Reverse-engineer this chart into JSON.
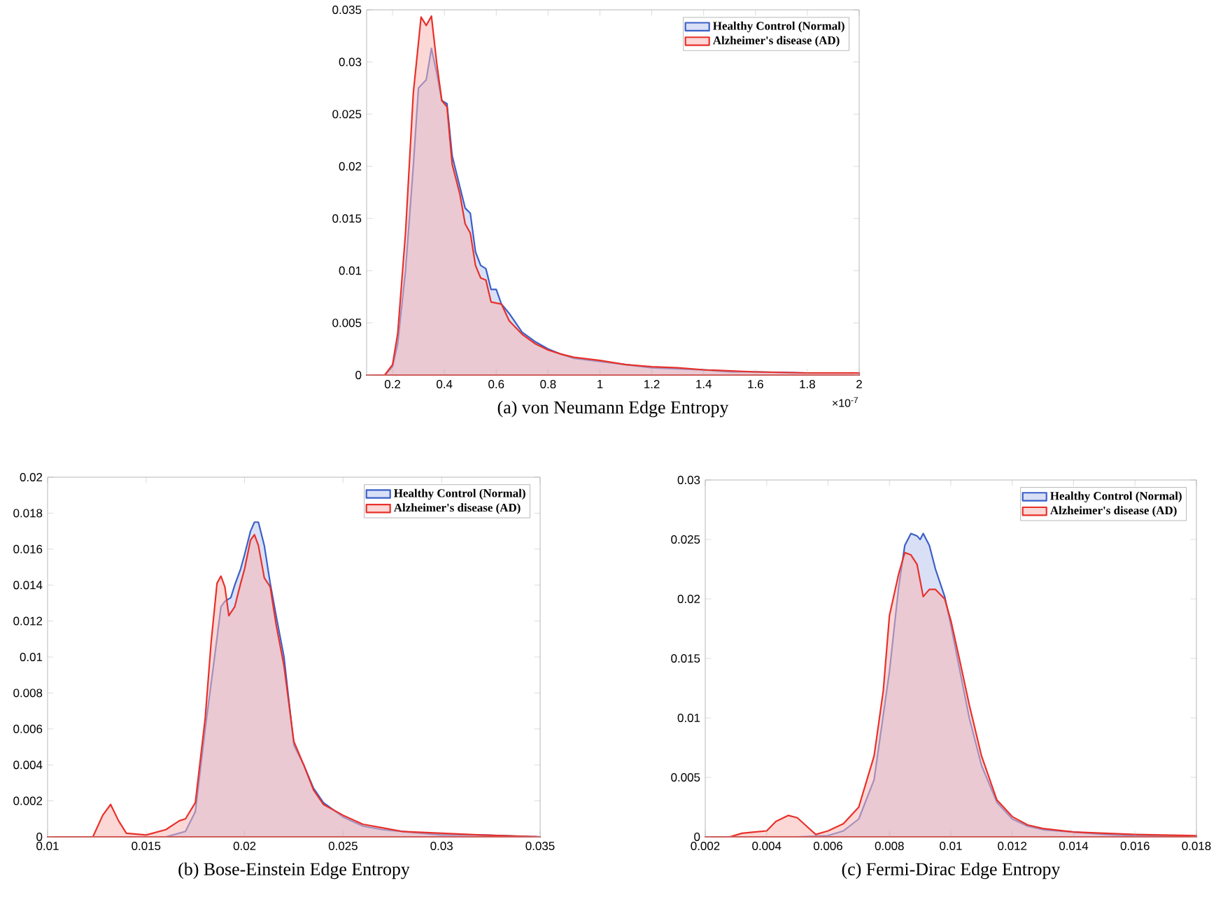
{
  "chart_data": [
    {
      "type": "area",
      "xlabel": "(a) von Neumann Edge Entropy",
      "annotations": [
        "×10$^{-7}$"
      ],
      "legend": "top right",
      "grid": false,
      "xlim": [
        0.1,
        2
      ],
      "xticks": [
        0.2,
        0.4,
        0.6,
        0.8,
        1,
        1.2,
        1.4,
        1.6,
        1.8,
        2
      ],
      "ylim": [
        0,
        0.035
      ],
      "yticks": [
        0,
        0.005,
        0.01,
        0.015,
        0.02,
        0.025,
        0.03,
        0.035
      ],
      "series": [
        {
          "name": "Healthy Control (Normal)",
          "color": "#3a5fc8",
          "x": [
            0.1,
            0.17,
            0.2,
            0.22,
            0.25,
            0.28,
            0.3,
            0.33,
            0.35,
            0.37,
            0.39,
            0.41,
            0.43,
            0.46,
            0.48,
            0.5,
            0.52,
            0.54,
            0.56,
            0.58,
            0.6,
            0.62,
            0.65,
            0.7,
            0.75,
            0.8,
            0.85,
            0.9,
            1.0,
            1.1,
            1.2,
            1.3,
            1.4,
            1.5,
            1.6,
            1.8,
            2.0
          ],
          "values": [
            0,
            0,
            0.0008,
            0.003,
            0.01,
            0.02,
            0.0275,
            0.0283,
            0.0313,
            0.029,
            0.0263,
            0.026,
            0.021,
            0.018,
            0.016,
            0.0155,
            0.0118,
            0.0105,
            0.0102,
            0.0082,
            0.0082,
            0.0068,
            0.0059,
            0.0041,
            0.0032,
            0.0025,
            0.002,
            0.0016,
            0.0013,
            0.001,
            0.0007,
            0.0006,
            0.0005,
            0.0003,
            0.0003,
            0.0002,
            0.0002
          ]
        },
        {
          "name": "Alzheimer's disease (AD)",
          "color": "#e8302a",
          "x": [
            0.1,
            0.17,
            0.2,
            0.22,
            0.25,
            0.28,
            0.31,
            0.33,
            0.35,
            0.37,
            0.39,
            0.41,
            0.43,
            0.46,
            0.48,
            0.5,
            0.52,
            0.54,
            0.56,
            0.58,
            0.6,
            0.62,
            0.65,
            0.7,
            0.75,
            0.8,
            0.85,
            0.9,
            1.0,
            1.1,
            1.2,
            1.3,
            1.4,
            1.5,
            1.6,
            1.8,
            2.0
          ],
          "values": [
            0,
            0,
            0.001,
            0.004,
            0.0136,
            0.027,
            0.0343,
            0.0335,
            0.0344,
            0.03,
            0.0263,
            0.0257,
            0.0202,
            0.0173,
            0.0145,
            0.0136,
            0.0105,
            0.0093,
            0.0091,
            0.007,
            0.0069,
            0.0068,
            0.0052,
            0.0039,
            0.003,
            0.0024,
            0.002,
            0.0017,
            0.0014,
            0.001,
            0.0008,
            0.0007,
            0.0005,
            0.0004,
            0.0003,
            0.0002,
            0.0002
          ]
        }
      ]
    },
    {
      "type": "area",
      "xlabel": "(b) Bose-Einstein Edge Entropy",
      "legend": "top right",
      "grid": false,
      "xlim": [
        0.01,
        0.035
      ],
      "xticks": [
        0.01,
        0.015,
        0.02,
        0.025,
        0.03,
        0.035
      ],
      "ylim": [
        0,
        0.02
      ],
      "yticks": [
        0,
        0.002,
        0.004,
        0.006,
        0.008,
        0.01,
        0.012,
        0.014,
        0.016,
        0.018,
        0.02
      ],
      "series": [
        {
          "name": "Healthy Control (Normal)",
          "color": "#3a5fc8",
          "x": [
            0.01,
            0.016,
            0.017,
            0.0175,
            0.018,
            0.0185,
            0.0188,
            0.019,
            0.0193,
            0.0195,
            0.0198,
            0.02,
            0.0203,
            0.0205,
            0.0207,
            0.021,
            0.0213,
            0.0216,
            0.022,
            0.0225,
            0.023,
            0.0235,
            0.024,
            0.025,
            0.026,
            0.027,
            0.028,
            0.03,
            0.032,
            0.035
          ],
          "values": [
            0,
            0,
            0.0003,
            0.0014,
            0.006,
            0.0102,
            0.0128,
            0.0131,
            0.0133,
            0.014,
            0.0149,
            0.0157,
            0.017,
            0.0175,
            0.0175,
            0.0162,
            0.0141,
            0.0123,
            0.01,
            0.0051,
            0.004,
            0.0027,
            0.0019,
            0.0011,
            0.0006,
            0.0004,
            0.0003,
            0.0001,
            0.0001,
            0
          ]
        },
        {
          "name": "Alzheimer's disease (AD)",
          "color": "#e8302a",
          "x": [
            0.01,
            0.0123,
            0.0128,
            0.0132,
            0.0136,
            0.014,
            0.015,
            0.016,
            0.0167,
            0.017,
            0.0175,
            0.018,
            0.0183,
            0.0186,
            0.0188,
            0.019,
            0.0192,
            0.0195,
            0.0198,
            0.02,
            0.0203,
            0.0205,
            0.0207,
            0.021,
            0.0213,
            0.0216,
            0.022,
            0.0225,
            0.023,
            0.0235,
            0.024,
            0.025,
            0.026,
            0.027,
            0.028,
            0.03,
            0.032,
            0.035
          ],
          "values": [
            0,
            0,
            0.0012,
            0.0018,
            0.0009,
            0.0002,
            0.0001,
            0.0004,
            0.0009,
            0.001,
            0.0019,
            0.0066,
            0.0108,
            0.0141,
            0.0145,
            0.0139,
            0.0123,
            0.0128,
            0.0141,
            0.0149,
            0.0165,
            0.0168,
            0.0162,
            0.0144,
            0.0139,
            0.0118,
            0.0095,
            0.0053,
            0.004,
            0.0026,
            0.0018,
            0.0012,
            0.0007,
            0.0005,
            0.0003,
            0.0002,
            0.0001,
            0
          ]
        }
      ]
    },
    {
      "type": "area",
      "xlabel": "(c) Fermi-Dirac Edge Entropy",
      "legend": "top right",
      "grid": false,
      "xlim": [
        0.002,
        0.018
      ],
      "xticks": [
        0.002,
        0.004,
        0.006,
        0.008,
        0.01,
        0.012,
        0.014,
        0.016,
        0.018
      ],
      "ylim": [
        0,
        0.03
      ],
      "yticks": [
        0,
        0.005,
        0.01,
        0.015,
        0.02,
        0.025,
        0.03
      ],
      "series": [
        {
          "name": "Healthy Control (Normal)",
          "color": "#3a5fc8",
          "x": [
            0.002,
            0.005,
            0.006,
            0.0065,
            0.007,
            0.0075,
            0.008,
            0.0083,
            0.0085,
            0.0087,
            0.0089,
            0.009,
            0.0091,
            0.0093,
            0.0095,
            0.0098,
            0.01,
            0.0103,
            0.0106,
            0.011,
            0.0115,
            0.012,
            0.0125,
            0.013,
            0.014,
            0.015,
            0.016,
            0.018
          ],
          "values": [
            0,
            0,
            0.0001,
            0.0005,
            0.0015,
            0.0048,
            0.0139,
            0.021,
            0.0245,
            0.0255,
            0.0253,
            0.025,
            0.0255,
            0.0245,
            0.0225,
            0.0202,
            0.0178,
            0.0139,
            0.01,
            0.006,
            0.0029,
            0.0015,
            0.0009,
            0.0006,
            0.0004,
            0.0002,
            0.0001,
            0
          ]
        },
        {
          "name": "Alzheimer's disease (AD)",
          "color": "#e8302a",
          "x": [
            0.002,
            0.0028,
            0.0032,
            0.0036,
            0.004,
            0.0043,
            0.0047,
            0.005,
            0.0053,
            0.0056,
            0.006,
            0.0065,
            0.007,
            0.0075,
            0.0078,
            0.008,
            0.0083,
            0.0085,
            0.0087,
            0.0089,
            0.0091,
            0.0093,
            0.0095,
            0.0098,
            0.01,
            0.0103,
            0.0106,
            0.011,
            0.0115,
            0.012,
            0.0125,
            0.013,
            0.014,
            0.015,
            0.016,
            0.018
          ],
          "values": [
            0,
            0,
            0.0003,
            0.0004,
            0.0005,
            0.0013,
            0.0018,
            0.0016,
            0.0009,
            0.0002,
            0.0005,
            0.0011,
            0.0025,
            0.0068,
            0.0123,
            0.0186,
            0.0221,
            0.0239,
            0.0237,
            0.0229,
            0.0202,
            0.0208,
            0.0208,
            0.02,
            0.0182,
            0.0147,
            0.0111,
            0.0068,
            0.0031,
            0.0017,
            0.001,
            0.0007,
            0.0004,
            0.0003,
            0.0002,
            0.0001
          ]
        }
      ]
    }
  ]
}
